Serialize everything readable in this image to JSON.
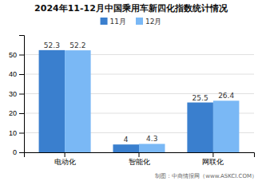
{
  "chart_data": {
    "type": "bar",
    "title": "2024年11-12月中国乘用车新四化指数统计情况",
    "categories": [
      "电动化",
      "智能化",
      "网联化"
    ],
    "series": [
      {
        "name": "11月",
        "color": "#3a7fce",
        "values": [
          52.3,
          4.0,
          25.5
        ]
      },
      {
        "name": "12月",
        "color": "#7ab8f5",
        "values": [
          52.2,
          4.3,
          26.4
        ]
      }
    ],
    "ylim": [
      0,
      60
    ],
    "yticks": [
      0,
      10,
      20,
      30,
      40,
      50
    ],
    "grid": true,
    "legend": "top",
    "data_labels": true,
    "annotations": [
      "制图：中商情报网（www.ASKCI.COM）"
    ]
  }
}
